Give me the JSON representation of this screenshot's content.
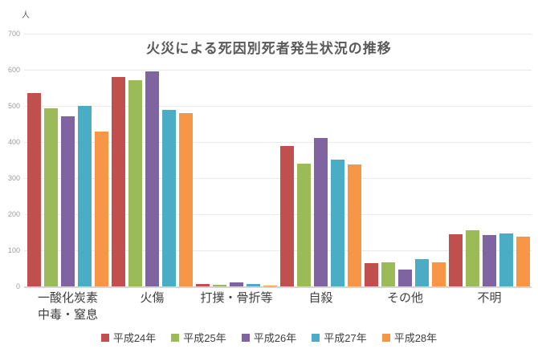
{
  "chart_data": {
    "type": "bar",
    "title": "火災による死因別死者発生状況の推移",
    "ylabel": "人",
    "xlabel": "",
    "ylim": [
      0,
      700
    ],
    "ytick_step": 100,
    "yticks": [
      700,
      600,
      500,
      400,
      300,
      200,
      100,
      0
    ],
    "grid": true,
    "legend_position": "bottom",
    "categories": [
      "一酸化炭素\n中毒・窒息",
      "火傷",
      "打撲・骨折等",
      "自殺",
      "その他",
      "不明"
    ],
    "series": [
      {
        "name": "平成24年",
        "color": "#C0504D",
        "values": [
          535,
          580,
          6,
          388,
          64,
          145
        ]
      },
      {
        "name": "平成25年",
        "color": "#9BBB59",
        "values": [
          493,
          572,
          4,
          340,
          67,
          155
        ]
      },
      {
        "name": "平成26年",
        "color": "#8064A2",
        "values": [
          472,
          595,
          11,
          411,
          46,
          142
        ]
      },
      {
        "name": "平成27年",
        "color": "#4BACC6",
        "values": [
          500,
          488,
          6,
          352,
          76,
          146
        ]
      },
      {
        "name": "平成28年",
        "color": "#F79646",
        "values": [
          430,
          480,
          3,
          338,
          66,
          138
        ]
      }
    ]
  }
}
